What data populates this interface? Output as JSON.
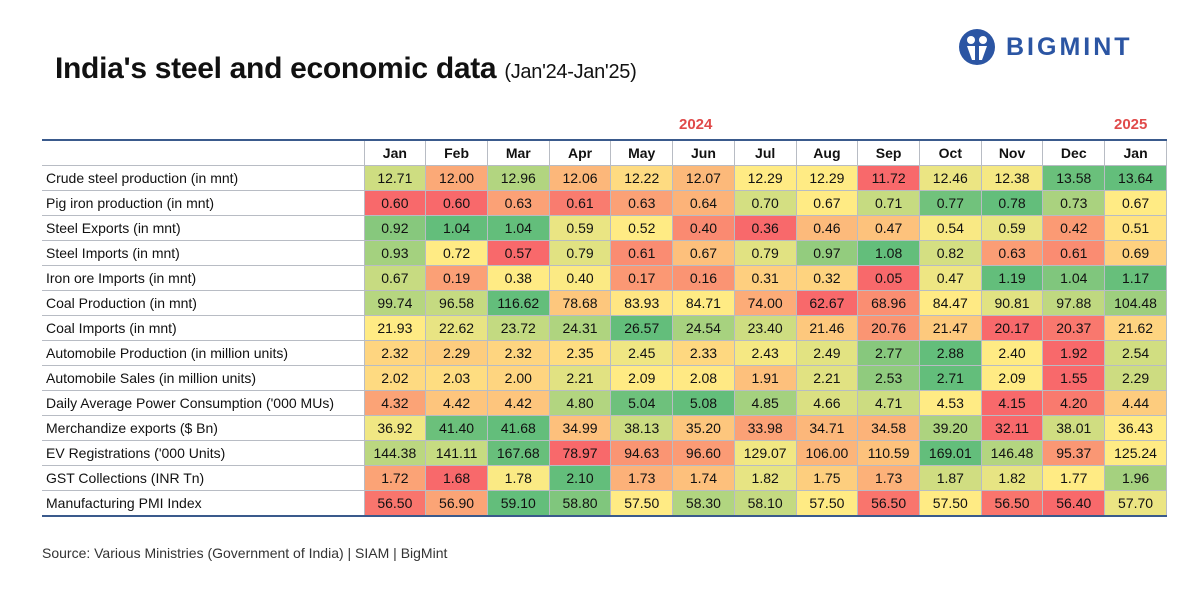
{
  "title": "India's steel and economic data",
  "subtitle": "(Jan'24-Jan'25)",
  "logo": {
    "text": "BIGMINT",
    "color": "#2b55a3"
  },
  "source": "Source: Various Ministries (Government of India)  |  SIAM  |  BigMint",
  "chart_data": {
    "type": "heatmap",
    "years": [
      {
        "label": "2024"
      },
      {
        "label": "2025"
      }
    ],
    "color_scale": {
      "low": "#F8696B",
      "mid": "#FFEB84",
      "high": "#63BE7B",
      "direction": "per row, low=red, high=green"
    },
    "columns": [
      "Jan",
      "Feb",
      "Mar",
      "Apr",
      "May",
      "Jun",
      "Jul",
      "Aug",
      "Sep",
      "Oct",
      "Nov",
      "Dec",
      "Jan"
    ],
    "rows": [
      {
        "label": "Crude steel production (in mnt)",
        "values": [
          "12.71",
          "12.00",
          "12.96",
          "12.06",
          "12.22",
          "12.07",
          "12.29",
          "12.29",
          "11.72",
          "12.46",
          "12.38",
          "13.58",
          "13.64"
        ]
      },
      {
        "label": "Pig iron production (in mnt)",
        "values": [
          "0.60",
          "0.60",
          "0.63",
          "0.61",
          "0.63",
          "0.64",
          "0.70",
          "0.67",
          "0.71",
          "0.77",
          "0.78",
          "0.73",
          "0.67"
        ]
      },
      {
        "label": "Steel Exports (in mnt)",
        "values": [
          "0.92",
          "1.04",
          "1.04",
          "0.59",
          "0.52",
          "0.40",
          "0.36",
          "0.46",
          "0.47",
          "0.54",
          "0.59",
          "0.42",
          "0.51"
        ]
      },
      {
        "label": "Steel Imports (in mnt)",
        "values": [
          "0.93",
          "0.72",
          "0.57",
          "0.79",
          "0.61",
          "0.67",
          "0.79",
          "0.97",
          "1.08",
          "0.82",
          "0.63",
          "0.61",
          "0.69"
        ]
      },
      {
        "label": "Iron ore Imports (in mnt)",
        "values": [
          "0.67",
          "0.19",
          "0.38",
          "0.40",
          "0.17",
          "0.16",
          "0.31",
          "0.32",
          "0.05",
          "0.47",
          "1.19",
          "1.04",
          "1.17"
        ]
      },
      {
        "label": "Coal Production (in mnt)",
        "values": [
          "99.74",
          "96.58",
          "116.62",
          "78.68",
          "83.93",
          "84.71",
          "74.00",
          "62.67",
          "68.96",
          "84.47",
          "90.81",
          "97.88",
          "104.48"
        ]
      },
      {
        "label": "Coal Imports (in mnt)",
        "values": [
          "21.93",
          "22.62",
          "23.72",
          "24.31",
          "26.57",
          "24.54",
          "23.40",
          "21.46",
          "20.76",
          "21.47",
          "20.17",
          "20.37",
          "21.62"
        ]
      },
      {
        "label": "Automobile Production (in million units)",
        "values": [
          "2.32",
          "2.29",
          "2.32",
          "2.35",
          "2.45",
          "2.33",
          "2.43",
          "2.49",
          "2.77",
          "2.88",
          "2.40",
          "1.92",
          "2.54"
        ]
      },
      {
        "label": "Automobile Sales (in million units)",
        "values": [
          "2.02",
          "2.03",
          "2.00",
          "2.21",
          "2.09",
          "2.08",
          "1.91",
          "2.21",
          "2.53",
          "2.71",
          "2.09",
          "1.55",
          "2.29"
        ]
      },
      {
        "label": "Daily Average Power Consumption ('000 MUs)",
        "values": [
          "4.32",
          "4.42",
          "4.42",
          "4.80",
          "5.04",
          "5.08",
          "4.85",
          "4.66",
          "4.71",
          "4.53",
          "4.15",
          "4.20",
          "4.44"
        ]
      },
      {
        "label": "Merchandize exports ($ Bn)",
        "values": [
          "36.92",
          "41.40",
          "41.68",
          "34.99",
          "38.13",
          "35.20",
          "33.98",
          "34.71",
          "34.58",
          "39.20",
          "32.11",
          "38.01",
          "36.43"
        ]
      },
      {
        "label": "EV Registrations ('000 Units)",
        "values": [
          "144.38",
          "141.11",
          "167.68",
          "78.97",
          "94.63",
          "96.60",
          "129.07",
          "106.00",
          "110.59",
          "169.01",
          "146.48",
          "95.37",
          "125.24"
        ]
      },
      {
        "label": "GST Collections (INR Tn)",
        "values": [
          "1.72",
          "1.68",
          "1.78",
          "2.10",
          "1.73",
          "1.74",
          "1.82",
          "1.75",
          "1.73",
          "1.87",
          "1.82",
          "1.77",
          "1.96"
        ]
      },
      {
        "label": "Manufacturing PMI Index",
        "values": [
          "56.50",
          "56.90",
          "59.10",
          "58.80",
          "57.50",
          "58.30",
          "58.10",
          "57.50",
          "56.50",
          "57.50",
          "56.50",
          "56.40",
          "57.70"
        ]
      }
    ]
  }
}
